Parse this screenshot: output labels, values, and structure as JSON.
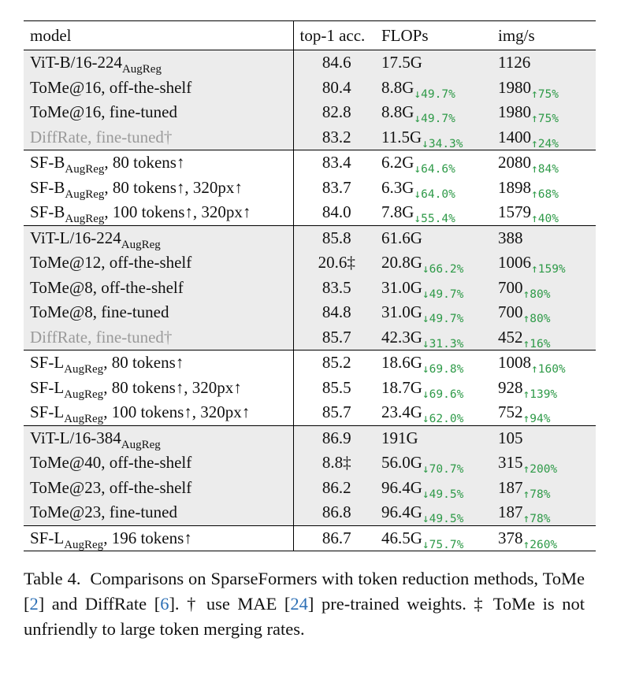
{
  "table": {
    "headers": {
      "model": "model",
      "acc": "top-1 acc.",
      "flops": "FLOPs",
      "img": "img/s"
    },
    "rows": [
      {
        "base": "ViT-B/16-224",
        "sub": "AugReg",
        "suffix": "",
        "acc": "84.6",
        "flops": "17.5G",
        "flops_delta": "",
        "img": "1126",
        "img_delta": ""
      },
      {
        "base": "ToMe@16, off-the-shelf",
        "sub": "",
        "suffix": "",
        "acc": "80.4",
        "flops": "8.8G",
        "flops_delta": "↓49.7%",
        "img": "1980",
        "img_delta": "↑75%"
      },
      {
        "base": "ToMe@16, fine-tuned",
        "sub": "",
        "suffix": "",
        "acc": "82.8",
        "flops": "8.8G",
        "flops_delta": "↓49.7%",
        "img": "1980",
        "img_delta": "↑75%"
      },
      {
        "base": "DiffRate, fine-tuned",
        "sub": "",
        "suffix": "†",
        "acc": "83.2",
        "flops": "11.5G",
        "flops_delta": "↓34.3%",
        "img": "1400",
        "img_delta": "↑24%"
      },
      {
        "base": "SF-B",
        "sub": "AugReg",
        "suffix": ", 80 tokens↑",
        "acc": "83.4",
        "flops": "6.2G",
        "flops_delta": "↓64.6%",
        "img": "2080",
        "img_delta": "↑84%"
      },
      {
        "base": "SF-B",
        "sub": "AugReg",
        "suffix": ", 80 tokens↑, 320px↑",
        "acc": "83.7",
        "flops": "6.3G",
        "flops_delta": "↓64.0%",
        "img": "1898",
        "img_delta": "↑68%"
      },
      {
        "base": "SF-B",
        "sub": "AugReg",
        "suffix": ", 100 tokens↑, 320px↑",
        "acc": "84.0",
        "flops": "7.8G",
        "flops_delta": "↓55.4%",
        "img": "1579",
        "img_delta": "↑40%"
      },
      {
        "base": "ViT-L/16-224",
        "sub": "AugReg",
        "suffix": "",
        "acc": "85.8",
        "flops": "61.6G",
        "flops_delta": "",
        "img": "388",
        "img_delta": ""
      },
      {
        "base": "ToMe@12, off-the-shelf",
        "sub": "",
        "suffix": "",
        "acc": "20.6‡",
        "flops": "20.8G",
        "flops_delta": "↓66.2%",
        "img": "1006",
        "img_delta": "↑159%"
      },
      {
        "base": "ToMe@8, off-the-shelf",
        "sub": "",
        "suffix": "",
        "acc": "83.5",
        "flops": "31.0G",
        "flops_delta": "↓49.7%",
        "img": "700",
        "img_delta": "↑80%"
      },
      {
        "base": "ToMe@8, fine-tuned",
        "sub": "",
        "suffix": "",
        "acc": "84.8",
        "flops": "31.0G",
        "flops_delta": "↓49.7%",
        "img": "700",
        "img_delta": "↑80%"
      },
      {
        "base": "DiffRate, fine-tuned",
        "sub": "",
        "suffix": "†",
        "acc": "85.7",
        "flops": "42.3G",
        "flops_delta": "↓31.3%",
        "img": "452",
        "img_delta": "↑16%"
      },
      {
        "base": "SF-L",
        "sub": "AugReg",
        "suffix": ", 80 tokens↑",
        "acc": "85.2",
        "flops": "18.6G",
        "flops_delta": "↓69.8%",
        "img": "1008",
        "img_delta": "↑160%"
      },
      {
        "base": "SF-L",
        "sub": "AugReg",
        "suffix": ", 80 tokens↑, 320px↑",
        "acc": "85.5",
        "flops": "18.7G",
        "flops_delta": "↓69.6%",
        "img": "928",
        "img_delta": "↑139%"
      },
      {
        "base": "SF-L",
        "sub": "AugReg",
        "suffix": ", 100 tokens↑, 320px↑",
        "acc": "85.7",
        "flops": "23.4G",
        "flops_delta": "↓62.0%",
        "img": "752",
        "img_delta": "↑94%"
      },
      {
        "base": "ViT-L/16-384",
        "sub": "AugReg",
        "suffix": "",
        "acc": "86.9",
        "flops": "191G",
        "flops_delta": "",
        "img": "105",
        "img_delta": ""
      },
      {
        "base": "ToMe@40, off-the-shelf",
        "sub": "",
        "suffix": "",
        "acc": "8.8‡",
        "flops": "56.0G",
        "flops_delta": "↓70.7%",
        "img": "315",
        "img_delta": "↑200%"
      },
      {
        "base": "ToMe@23, off-the-shelf",
        "sub": "",
        "suffix": "",
        "acc": "86.2",
        "flops": "96.4G",
        "flops_delta": "↓49.5%",
        "img": "187",
        "img_delta": "↑78%"
      },
      {
        "base": "ToMe@23, fine-tuned",
        "sub": "",
        "suffix": "",
        "acc": "86.8",
        "flops": "96.4G",
        "flops_delta": "↓49.5%",
        "img": "187",
        "img_delta": "↑78%"
      },
      {
        "base": "SF-L",
        "sub": "AugReg",
        "suffix": ", 196 tokens↑",
        "acc": "86.7",
        "flops": "46.5G",
        "flops_delta": "↓75.7%",
        "img": "378",
        "img_delta": "↑260%"
      }
    ]
  },
  "caption": {
    "label": "Table 4.",
    "text1": "Comparisons on SparseFormers with token reduction methods, ToMe [",
    "ref1": "2",
    "text2": "] and DiffRate [",
    "ref2": "6",
    "text3": "]. † use MAE [",
    "ref3": "24",
    "text4": "] pre-trained weights. ‡ ToMe is not unfriendly to large token merging rates."
  },
  "colors": {
    "delta": "#2e9a48",
    "shade": "#ececec",
    "muted": "#9a9a9a",
    "link": "#2c6fb5"
  }
}
